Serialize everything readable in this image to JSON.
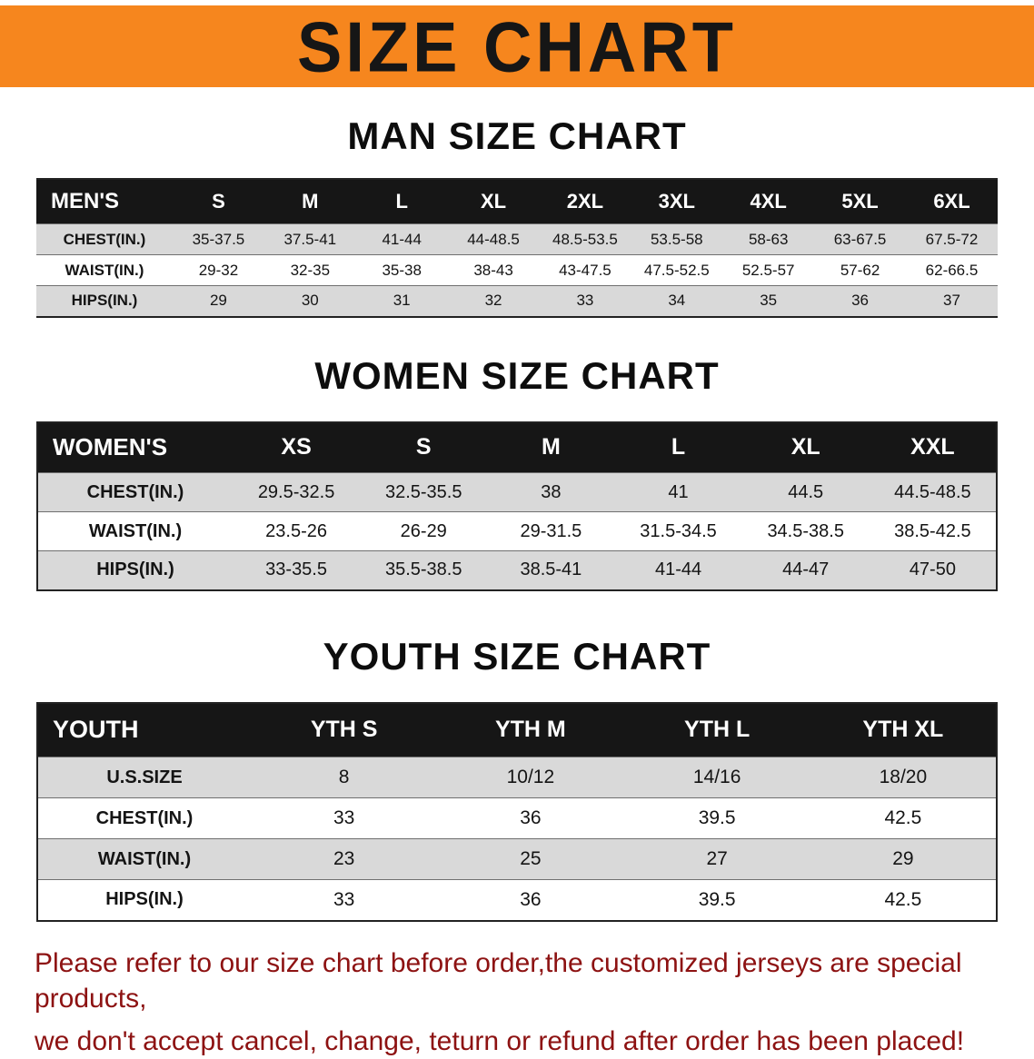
{
  "banner": {
    "title": "SIZE CHART"
  },
  "colors": {
    "banner_bg": "#F6861E",
    "table_header_bg": "#161616",
    "row_alt_bg": "#D9D9D9",
    "footer_text": "#8D1212"
  },
  "men": {
    "heading": "MAN SIZE CHART",
    "table": {
      "header": [
        "MEN'S",
        "S",
        "M",
        "L",
        "XL",
        "2XL",
        "3XL",
        "4XL",
        "5XL",
        "6XL"
      ],
      "rows": [
        {
          "label": "CHEST(IN.)",
          "values": [
            "35-37.5",
            "37.5-41",
            "41-44",
            "44-48.5",
            "48.5-53.5",
            "53.5-58",
            "58-63",
            "63-67.5",
            "67.5-72"
          ]
        },
        {
          "label": "WAIST(IN.)",
          "values": [
            "29-32",
            "32-35",
            "35-38",
            "38-43",
            "43-47.5",
            "47.5-52.5",
            "52.5-57",
            "57-62",
            "62-66.5"
          ]
        },
        {
          "label": "HIPS(IN.)",
          "values": [
            "29",
            "30",
            "31",
            "32",
            "33",
            "34",
            "35",
            "36",
            "37"
          ]
        }
      ]
    }
  },
  "women": {
    "heading": "WOMEN SIZE CHART",
    "table": {
      "header": [
        "WOMEN'S",
        "XS",
        "S",
        "M",
        "L",
        "XL",
        "XXL"
      ],
      "rows": [
        {
          "label": "CHEST(IN.)",
          "values": [
            "29.5-32.5",
            "32.5-35.5",
            "38",
            "41",
            "44.5",
            "44.5-48.5"
          ]
        },
        {
          "label": "WAIST(IN.)",
          "values": [
            "23.5-26",
            "26-29",
            "29-31.5",
            "31.5-34.5",
            "34.5-38.5",
            "38.5-42.5"
          ]
        },
        {
          "label": "HIPS(IN.)",
          "values": [
            "33-35.5",
            "35.5-38.5",
            "38.5-41",
            "41-44",
            "44-47",
            "47-50"
          ]
        }
      ]
    }
  },
  "youth": {
    "heading": "YOUTH SIZE CHART",
    "table": {
      "header": [
        "YOUTH",
        "YTH S",
        "YTH M",
        "YTH L",
        "YTH XL"
      ],
      "rows": [
        {
          "label": "U.S.SIZE",
          "values": [
            "8",
            "10/12",
            "14/16",
            "18/20"
          ]
        },
        {
          "label": "CHEST(IN.)",
          "values": [
            "33",
            "36",
            "39.5",
            "42.5"
          ]
        },
        {
          "label": "WAIST(IN.)",
          "values": [
            "23",
            "25",
            "27",
            "29"
          ]
        },
        {
          "label": "HIPS(IN.)",
          "values": [
            "33",
            "36",
            "39.5",
            "42.5"
          ]
        }
      ]
    }
  },
  "footer": {
    "line1": "Please refer to our size chart before order,the customized jerseys are special products,",
    "line2": "we don't accept cancel, change, teturn or refund after order has been placed!"
  }
}
